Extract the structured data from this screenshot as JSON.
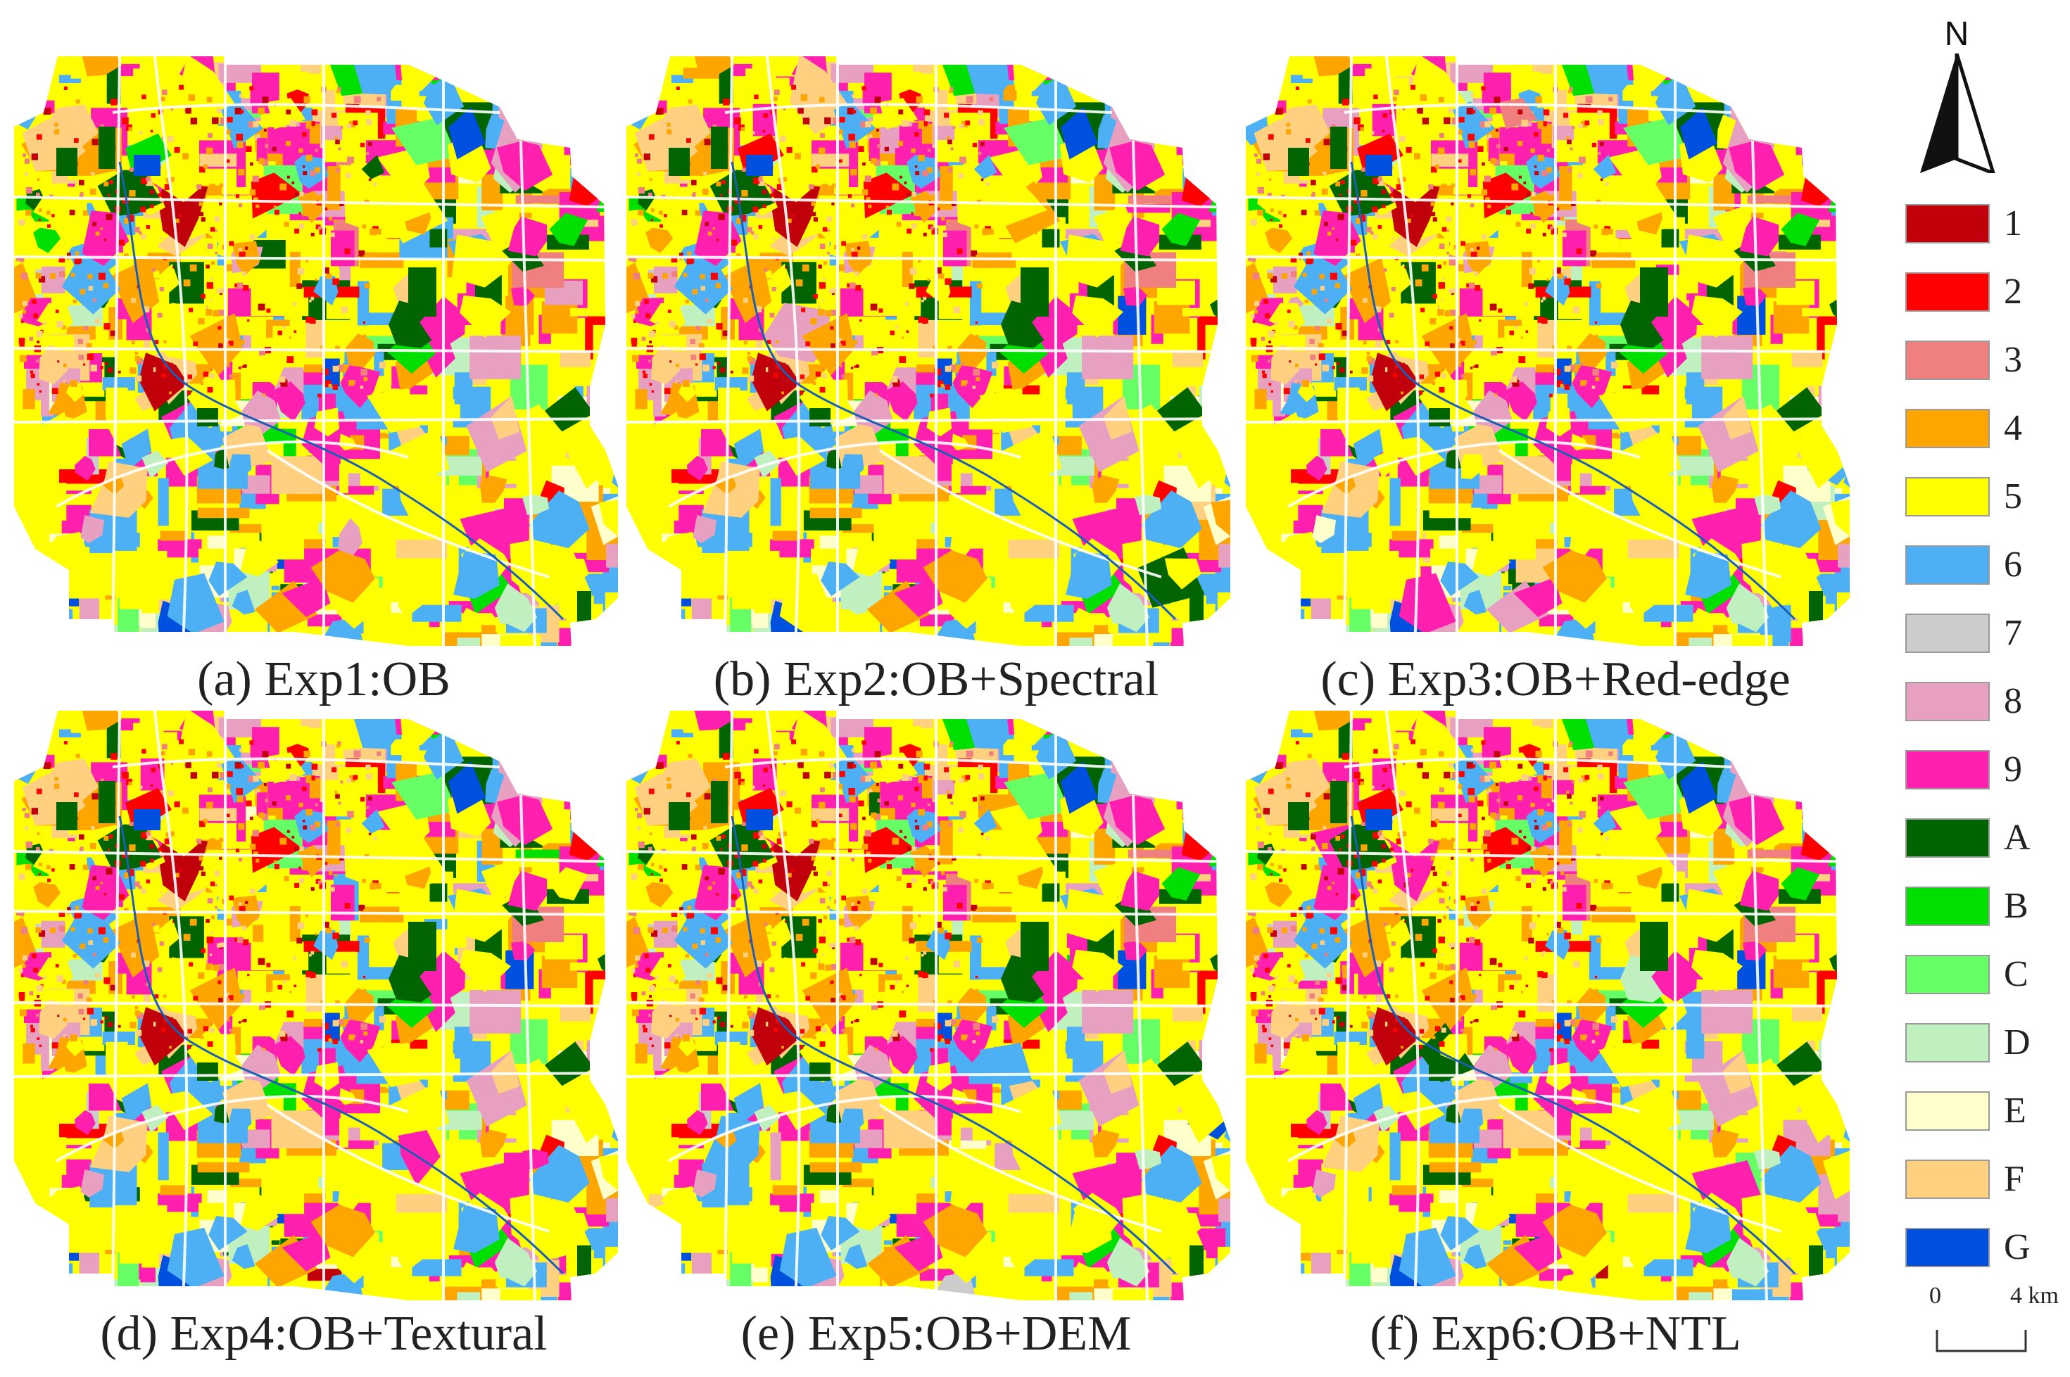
{
  "panels": [
    {
      "id": "a",
      "caption": "(a) Exp1:OB"
    },
    {
      "id": "b",
      "caption": "(b) Exp2:OB+Spectral"
    },
    {
      "id": "c",
      "caption": "(c) Exp3:OB+Red-edge"
    },
    {
      "id": "d",
      "caption": "(d) Exp4:OB+Textural"
    },
    {
      "id": "e",
      "caption": "(e) Exp5:OB+DEM"
    },
    {
      "id": "f",
      "caption": "(f) Exp6:OB+NTL"
    }
  ],
  "north": {
    "letter": "N",
    "icon": "north-arrow-icon"
  },
  "legend": [
    {
      "label": "1",
      "color": "#c0000b"
    },
    {
      "label": "2",
      "color": "#ff0000"
    },
    {
      "label": "3",
      "color": "#f08080"
    },
    {
      "label": "4",
      "color": "#ffa500"
    },
    {
      "label": "5",
      "color": "#ffff00"
    },
    {
      "label": "6",
      "color": "#4db0f5"
    },
    {
      "label": "7",
      "color": "#cccccc"
    },
    {
      "label": "8",
      "color": "#e8a0c0"
    },
    {
      "label": "9",
      "color": "#ff20b0"
    },
    {
      "label": "A",
      "color": "#006400"
    },
    {
      "label": "B",
      "color": "#00e000"
    },
    {
      "label": "C",
      "color": "#66ff66"
    },
    {
      "label": "D",
      "color": "#c0f0c0"
    },
    {
      "label": "E",
      "color": "#ffffcc"
    },
    {
      "label": "F",
      "color": "#ffd080"
    },
    {
      "label": "G",
      "color": "#0050e0"
    }
  ],
  "scale": {
    "start_label": "0",
    "end_label": "4 km",
    "icon": "scale-bar-icon"
  }
}
